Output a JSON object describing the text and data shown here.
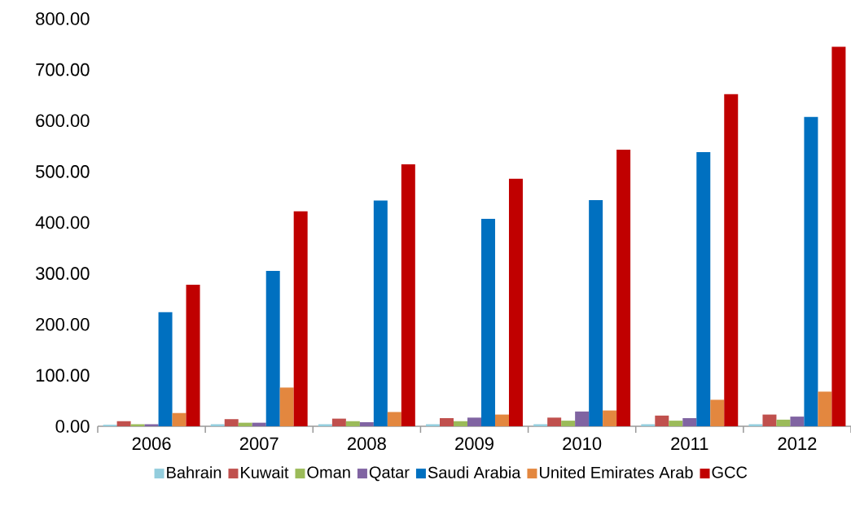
{
  "chart_data": {
    "type": "bar",
    "categories": [
      "2006",
      "2007",
      "2008",
      "2009",
      "2010",
      "2011",
      "2012"
    ],
    "series": [
      {
        "name": "Bahrain",
        "color": "#93cddd",
        "values": [
          3,
          4,
          4,
          4,
          4,
          4,
          4
        ]
      },
      {
        "name": "Kuwait",
        "color": "#c0504d",
        "values": [
          10,
          14,
          15,
          16,
          17,
          21,
          23
        ]
      },
      {
        "name": "Oman",
        "color": "#9bbb59",
        "values": [
          4,
          7,
          10,
          10,
          11,
          11,
          13
        ]
      },
      {
        "name": "Qatar",
        "color": "#8064a2",
        "values": [
          4,
          7,
          8,
          17,
          29,
          16,
          19
        ]
      },
      {
        "name": "Saudi Arabia",
        "color": "#0070c0",
        "values": [
          224,
          305,
          443,
          407,
          444,
          538,
          607
        ]
      },
      {
        "name": "United Emirates Arab",
        "color": "#e3873f",
        "values": [
          26,
          76,
          28,
          23,
          31,
          52,
          68
        ]
      },
      {
        "name": "GCC",
        "color": "#c00000",
        "values": [
          278,
          422,
          514,
          486,
          543,
          652,
          745
        ]
      }
    ],
    "ylim": [
      0,
      800
    ],
    "yticks": [
      {
        "value": 0,
        "label": "0.00"
      },
      {
        "value": 100,
        "label": "100.00"
      },
      {
        "value": 200,
        "label": "200.00"
      },
      {
        "value": 300,
        "label": "300.00"
      },
      {
        "value": 400,
        "label": "400.00"
      },
      {
        "value": 500,
        "label": "500.00"
      },
      {
        "value": 600,
        "label": "600.00"
      },
      {
        "value": 700,
        "label": "700.00"
      },
      {
        "value": 800,
        "label": "800.00"
      }
    ],
    "grid": false,
    "legend": "bottom"
  }
}
